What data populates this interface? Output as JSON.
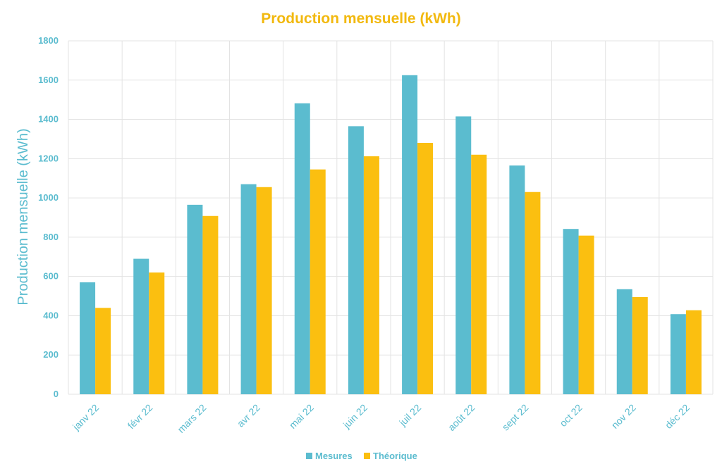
{
  "colors": {
    "mesures": "#5bbccf",
    "theorique": "#fbbf10",
    "title": "#f2b90f",
    "axis_text": "#5bbccf",
    "grid": "#e3e3e3",
    "legend_text": "#5bbccf"
  },
  "chart_data": {
    "type": "bar",
    "title": "Production mensuelle (kWh)",
    "xlabel": "",
    "ylabel": "Production mensuelle (kWh)",
    "ylim": [
      0,
      1800
    ],
    "yticks": [
      0,
      200,
      400,
      600,
      800,
      1000,
      1200,
      1400,
      1600,
      1800
    ],
    "grid": true,
    "legend_position": "bottom",
    "categories": [
      "janv 22",
      "févr 22",
      "mars 22",
      "avr 22",
      "mai 22",
      "juin 22",
      "juil 22",
      "août 22",
      "sept 22",
      "oct 22",
      "nov 22",
      "déc 22"
    ],
    "series": [
      {
        "name": "Mesures",
        "color_key": "mesures",
        "values": [
          570,
          690,
          965,
          1070,
          1482,
          1365,
          1625,
          1415,
          1165,
          842,
          535,
          408
        ]
      },
      {
        "name": "Théorique",
        "color_key": "theorique",
        "values": [
          440,
          620,
          908,
          1055,
          1145,
          1212,
          1280,
          1220,
          1030,
          808,
          495,
          428
        ]
      }
    ]
  }
}
